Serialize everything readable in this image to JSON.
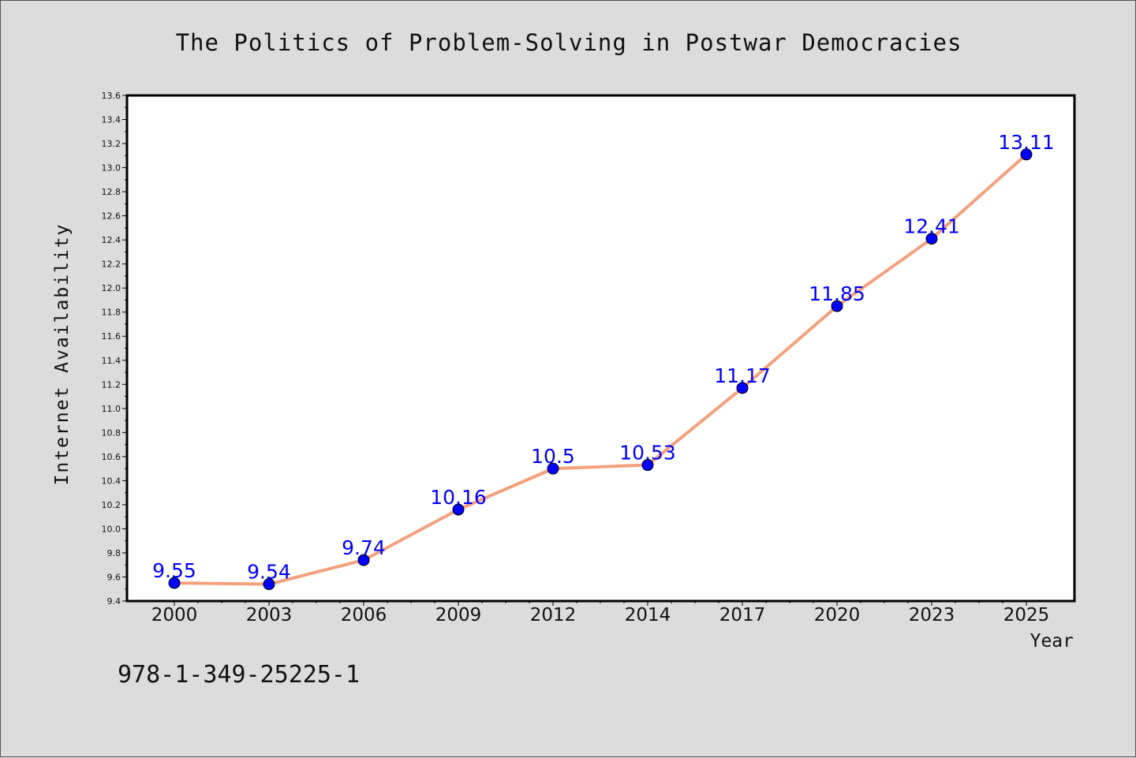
{
  "chart_data": {
    "type": "line",
    "title": "The Politics of Problem-Solving in Postwar Democracies",
    "xlabel": "Year",
    "ylabel": "Internet Availability",
    "categories": [
      "2000",
      "2003",
      "2006",
      "2009",
      "2012",
      "2014",
      "2017",
      "2020",
      "2023",
      "2025"
    ],
    "series": [
      {
        "values": [
          9.55,
          9.54,
          9.74,
          10.16,
          10.5,
          10.53,
          11.17,
          11.85,
          12.41,
          13.11
        ],
        "labels": [
          "9.55",
          "9.54",
          "9.74",
          "10.16",
          "10.5",
          "10.53",
          "11.17",
          "11.85",
          "12.41",
          "13.11"
        ],
        "line_color": "#f4a07c",
        "marker_color": "#0000ff",
        "label_color": "#0000ff"
      }
    ],
    "ylim": [
      9.4,
      13.6
    ],
    "yticks": [
      "9.4",
      "9.6",
      "9.8",
      "10.0",
      "10.2",
      "10.4",
      "10.6",
      "10.8",
      "11.0",
      "11.2",
      "11.4",
      "11.6",
      "11.8",
      "12.0",
      "12.2",
      "12.4",
      "12.6",
      "12.8",
      "13.0",
      "13.2",
      "13.4",
      "13.6"
    ],
    "grid": false,
    "legend": "none"
  },
  "footer": {
    "isbn": "978-1-349-25225-1"
  },
  "colors": {
    "background": "#dcdcdc",
    "plot_background": "#ffffff",
    "axes": "#000000"
  }
}
